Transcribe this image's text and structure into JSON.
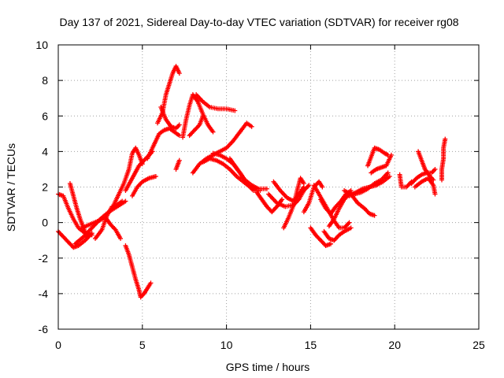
{
  "chart_data": {
    "type": "scatter",
    "title": "Day 137 of 2021, Sidereal Day-to-day VTEC variation (SDTVAR) for receiver rg08",
    "xlabel": "GPS time / hours",
    "ylabel": "SDTVAR / TECUs",
    "xlim": [
      0,
      25
    ],
    "ylim": [
      -6,
      10
    ],
    "xticks": [
      0,
      5,
      10,
      15,
      20,
      25
    ],
    "yticks": [
      -6,
      -4,
      -2,
      0,
      2,
      4,
      6,
      8,
      10
    ],
    "grid": true,
    "marker": "+",
    "color": "#ff0000",
    "tracks": [
      [
        [
          0.0,
          1.6
        ],
        [
          0.3,
          1.5
        ],
        [
          0.6,
          0.8
        ],
        [
          0.9,
          0.2
        ],
        [
          1.2,
          -0.3
        ],
        [
          1.6,
          -0.6
        ],
        [
          2.0,
          -0.7
        ]
      ],
      [
        [
          0.0,
          -0.5
        ],
        [
          0.3,
          -0.8
        ],
        [
          0.6,
          -1.1
        ],
        [
          0.9,
          -1.4
        ],
        [
          1.2,
          -1.3
        ],
        [
          1.6,
          -1.0
        ],
        [
          2.0,
          -0.6
        ]
      ],
      [
        [
          0.7,
          2.2
        ],
        [
          0.9,
          1.5
        ],
        [
          1.1,
          0.8
        ],
        [
          1.3,
          0.2
        ],
        [
          1.5,
          -0.3
        ],
        [
          1.7,
          -0.8
        ]
      ],
      [
        [
          1.0,
          -1.2
        ],
        [
          1.5,
          -0.8
        ],
        [
          2.0,
          -0.3
        ],
        [
          2.5,
          0.2
        ],
        [
          3.0,
          0.6
        ],
        [
          3.5,
          0.9
        ],
        [
          4.0,
          1.2
        ]
      ],
      [
        [
          1.4,
          -0.3
        ],
        [
          1.9,
          -0.1
        ],
        [
          2.4,
          0.1
        ],
        [
          2.8,
          0.3
        ],
        [
          3.1,
          -0.1
        ],
        [
          3.4,
          -0.4
        ],
        [
          3.7,
          -0.9
        ]
      ],
      [
        [
          2.2,
          -0.9
        ],
        [
          2.6,
          -0.4
        ],
        [
          2.9,
          0.4
        ],
        [
          3.2,
          0.9
        ],
        [
          3.5,
          1.0
        ],
        [
          3.8,
          1.2
        ]
      ],
      [
        [
          3.3,
          1.0
        ],
        [
          3.6,
          1.6
        ],
        [
          3.9,
          2.2
        ],
        [
          4.2,
          3.0
        ],
        [
          4.4,
          3.9
        ],
        [
          4.6,
          4.2
        ],
        [
          4.8,
          3.8
        ],
        [
          5.0,
          3.3
        ]
      ],
      [
        [
          4.0,
          1.8
        ],
        [
          4.4,
          2.5
        ],
        [
          4.8,
          3.2
        ],
        [
          5.2,
          3.6
        ],
        [
          5.6,
          4.0
        ]
      ],
      [
        [
          4.4,
          1.5
        ],
        [
          4.7,
          2.0
        ],
        [
          5.0,
          2.3
        ],
        [
          5.4,
          2.5
        ],
        [
          5.8,
          2.6
        ]
      ],
      [
        [
          4.0,
          -1.3
        ],
        [
          4.2,
          -1.8
        ],
        [
          4.4,
          -2.5
        ],
        [
          4.6,
          -3.2
        ],
        [
          4.8,
          -3.8
        ],
        [
          4.9,
          -4.2
        ],
        [
          5.1,
          -4.0
        ],
        [
          5.3,
          -3.7
        ],
        [
          5.5,
          -3.4
        ]
      ],
      [
        [
          5.3,
          3.6
        ],
        [
          5.6,
          4.2
        ],
        [
          5.8,
          4.6
        ],
        [
          6.0,
          5.0
        ],
        [
          6.3,
          5.2
        ],
        [
          6.6,
          5.3
        ],
        [
          6.9,
          5.1
        ],
        [
          7.2,
          4.9
        ]
      ],
      [
        [
          5.9,
          5.6
        ],
        [
          6.2,
          6.2
        ],
        [
          6.4,
          7.2
        ],
        [
          6.6,
          7.8
        ],
        [
          6.8,
          8.4
        ],
        [
          7.0,
          8.8
        ],
        [
          7.2,
          8.4
        ]
      ],
      [
        [
          6.1,
          6.5
        ],
        [
          6.4,
          5.8
        ],
        [
          6.7,
          5.4
        ],
        [
          7.0,
          5.3
        ],
        [
          7.2,
          5.5
        ]
      ],
      [
        [
          7.0,
          3.0
        ],
        [
          7.2,
          3.5
        ]
      ],
      [
        [
          7.4,
          4.8
        ],
        [
          7.6,
          5.8
        ],
        [
          7.8,
          6.6
        ],
        [
          8.0,
          7.2
        ],
        [
          8.3,
          6.8
        ],
        [
          8.6,
          6.1
        ],
        [
          8.9,
          5.5
        ],
        [
          9.2,
          5.1
        ]
      ],
      [
        [
          7.8,
          4.9
        ],
        [
          8.1,
          5.2
        ],
        [
          8.4,
          5.5
        ],
        [
          8.6,
          6.0
        ]
      ],
      [
        [
          8.2,
          7.2
        ],
        [
          8.6,
          6.8
        ],
        [
          9.0,
          6.5
        ],
        [
          9.5,
          6.4
        ],
        [
          10.0,
          6.4
        ],
        [
          10.5,
          6.3
        ]
      ],
      [
        [
          8.0,
          2.8
        ],
        [
          8.4,
          3.3
        ],
        [
          8.8,
          3.6
        ],
        [
          9.2,
          3.8
        ],
        [
          9.6,
          4.0
        ],
        [
          10.0,
          4.2
        ],
        [
          10.4,
          4.6
        ],
        [
          10.8,
          5.1
        ],
        [
          11.2,
          5.6
        ],
        [
          11.5,
          5.4
        ]
      ],
      [
        [
          8.6,
          3.4
        ],
        [
          9.0,
          3.6
        ],
        [
          9.4,
          3.5
        ],
        [
          9.8,
          3.3
        ],
        [
          10.2,
          3.0
        ],
        [
          10.6,
          2.6
        ],
        [
          11.0,
          2.3
        ],
        [
          11.4,
          2.0
        ],
        [
          11.8,
          1.9
        ]
      ],
      [
        [
          9.2,
          3.9
        ],
        [
          9.6,
          3.8
        ],
        [
          10.0,
          3.6
        ],
        [
          10.4,
          3.3
        ],
        [
          10.8,
          2.8
        ],
        [
          11.2,
          2.2
        ],
        [
          11.6,
          1.8
        ],
        [
          12.0,
          1.8
        ]
      ],
      [
        [
          10.2,
          3.6
        ],
        [
          10.5,
          3.2
        ],
        [
          10.8,
          2.8
        ],
        [
          11.1,
          2.4
        ],
        [
          11.5,
          2.1
        ],
        [
          11.9,
          1.9
        ],
        [
          12.4,
          1.9
        ]
      ],
      [
        [
          11.8,
          1.7
        ],
        [
          12.1,
          1.3
        ],
        [
          12.4,
          0.9
        ],
        [
          12.7,
          0.6
        ],
        [
          13.0,
          0.9
        ],
        [
          13.3,
          1.3
        ]
      ],
      [
        [
          12.5,
          1.6
        ],
        [
          13.0,
          1.1
        ],
        [
          13.5,
          0.9
        ],
        [
          14.0,
          1.0
        ],
        [
          14.3,
          1.3
        ],
        [
          14.6,
          1.8
        ],
        [
          14.9,
          2.1
        ]
      ],
      [
        [
          12.8,
          2.3
        ],
        [
          13.2,
          1.8
        ],
        [
          13.6,
          1.4
        ],
        [
          14.0,
          1.2
        ],
        [
          14.3,
          1.6
        ],
        [
          14.6,
          2.0
        ]
      ],
      [
        [
          13.4,
          -0.3
        ],
        [
          13.7,
          0.3
        ],
        [
          14.0,
          1.0
        ],
        [
          14.2,
          1.8
        ],
        [
          14.4,
          2.5
        ],
        [
          14.6,
          2.2
        ]
      ],
      [
        [
          14.6,
          0.6
        ],
        [
          14.9,
          1.1
        ],
        [
          15.2,
          2.0
        ],
        [
          15.5,
          2.3
        ],
        [
          15.7,
          2.0
        ]
      ],
      [
        [
          15.0,
          -0.3
        ],
        [
          15.3,
          -0.7
        ],
        [
          15.6,
          -1.0
        ],
        [
          15.9,
          -1.3
        ],
        [
          16.2,
          -1.2
        ]
      ],
      [
        [
          15.2,
          2.1
        ],
        [
          15.5,
          1.6
        ],
        [
          15.8,
          1.1
        ],
        [
          16.1,
          0.6
        ],
        [
          16.4,
          0.1
        ],
        [
          16.7,
          -0.3
        ],
        [
          17.0,
          -0.3
        ],
        [
          17.3,
          0.0
        ]
      ],
      [
        [
          15.6,
          1.3
        ],
        [
          15.9,
          0.8
        ],
        [
          16.2,
          0.5
        ],
        [
          16.5,
          0.9
        ],
        [
          16.8,
          1.2
        ],
        [
          17.1,
          1.6
        ],
        [
          17.4,
          1.8
        ]
      ],
      [
        [
          15.8,
          -0.5
        ],
        [
          16.1,
          -0.9
        ],
        [
          16.4,
          -1.0
        ],
        [
          16.7,
          -0.7
        ],
        [
          17.0,
          -0.5
        ],
        [
          17.4,
          -0.3
        ]
      ],
      [
        [
          16.1,
          -0.2
        ],
        [
          16.4,
          0.2
        ],
        [
          16.7,
          0.8
        ],
        [
          17.0,
          1.3
        ],
        [
          17.3,
          1.6
        ],
        [
          17.6,
          1.6
        ]
      ],
      [
        [
          17.0,
          1.8
        ],
        [
          17.4,
          1.6
        ],
        [
          17.8,
          1.1
        ],
        [
          18.2,
          0.8
        ],
        [
          18.5,
          0.5
        ],
        [
          18.8,
          0.4
        ]
      ],
      [
        [
          17.3,
          1.5
        ],
        [
          17.7,
          1.7
        ],
        [
          18.1,
          1.9
        ],
        [
          18.5,
          2.0
        ],
        [
          18.9,
          2.1
        ],
        [
          19.3,
          2.3
        ],
        [
          19.7,
          2.6
        ]
      ],
      [
        [
          17.6,
          1.6
        ],
        [
          18.0,
          1.7
        ],
        [
          18.4,
          1.9
        ],
        [
          18.8,
          2.2
        ],
        [
          19.2,
          2.4
        ],
        [
          19.6,
          2.8
        ]
      ],
      [
        [
          18.4,
          3.2
        ],
        [
          18.6,
          3.7
        ],
        [
          18.8,
          4.2
        ],
        [
          19.1,
          4.1
        ],
        [
          19.4,
          3.9
        ],
        [
          19.6,
          3.8
        ]
      ],
      [
        [
          18.6,
          2.8
        ],
        [
          18.9,
          3.0
        ],
        [
          19.2,
          3.1
        ],
        [
          19.5,
          3.2
        ],
        [
          19.8,
          3.8
        ]
      ],
      [
        [
          20.3,
          2.7
        ],
        [
          20.4,
          2.0
        ],
        [
          20.7,
          2.0
        ],
        [
          21.0,
          2.3
        ]
      ],
      [
        [
          21.0,
          2.2
        ],
        [
          21.3,
          2.5
        ],
        [
          21.6,
          2.7
        ],
        [
          21.9,
          2.8
        ],
        [
          22.2,
          2.8
        ],
        [
          22.4,
          3.0
        ]
      ],
      [
        [
          21.2,
          2.0
        ],
        [
          21.6,
          2.3
        ],
        [
          22.0,
          2.5
        ],
        [
          22.3,
          2.1
        ],
        [
          22.4,
          1.6
        ]
      ],
      [
        [
          21.4,
          4.0
        ],
        [
          21.6,
          3.5
        ],
        [
          21.8,
          3.0
        ],
        [
          22.1,
          2.6
        ],
        [
          22.3,
          2.4
        ]
      ],
      [
        [
          22.8,
          2.4
        ],
        [
          22.8,
          3.0
        ],
        [
          22.9,
          3.6
        ],
        [
          22.9,
          4.2
        ],
        [
          23.0,
          4.7
        ]
      ]
    ]
  }
}
